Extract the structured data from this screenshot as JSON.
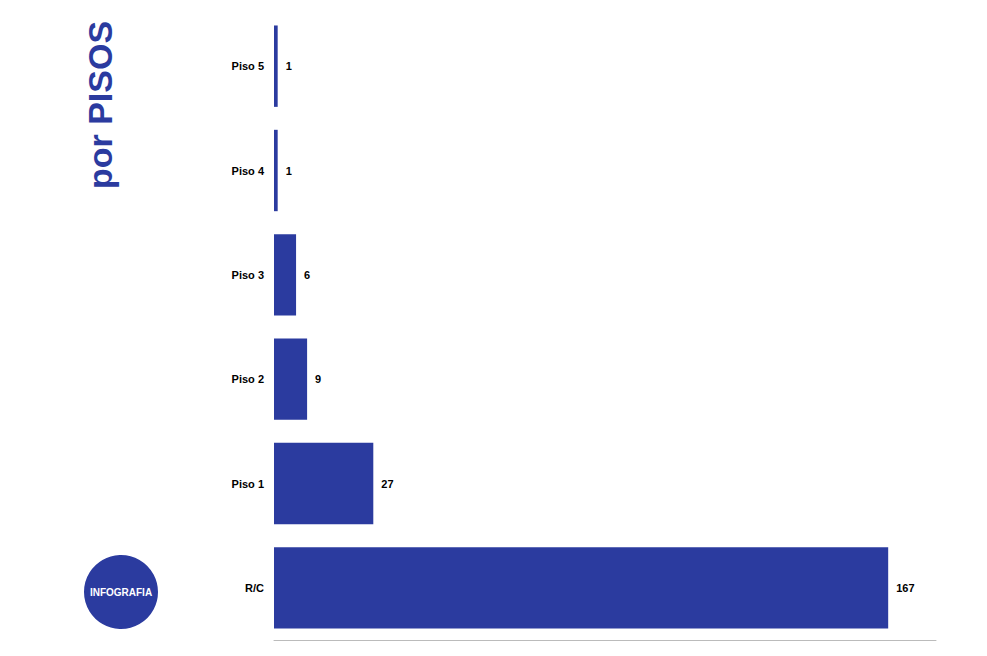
{
  "chart_data": {
    "type": "bar",
    "title": "por PISOS",
    "annotations": [
      "INFOGRAFIA"
    ],
    "categories": [
      "Piso 5",
      "Piso 4",
      "Piso 3",
      "Piso 2",
      "Piso 1",
      "R/C"
    ],
    "values": [
      1,
      1,
      6,
      9,
      27,
      167
    ],
    "color": "#2b3b9f",
    "orientation": "horizontal",
    "data_labels": true,
    "tick_labels": "y",
    "xlim": [
      0,
      180
    ],
    "xticks": [],
    "grid": false
  }
}
